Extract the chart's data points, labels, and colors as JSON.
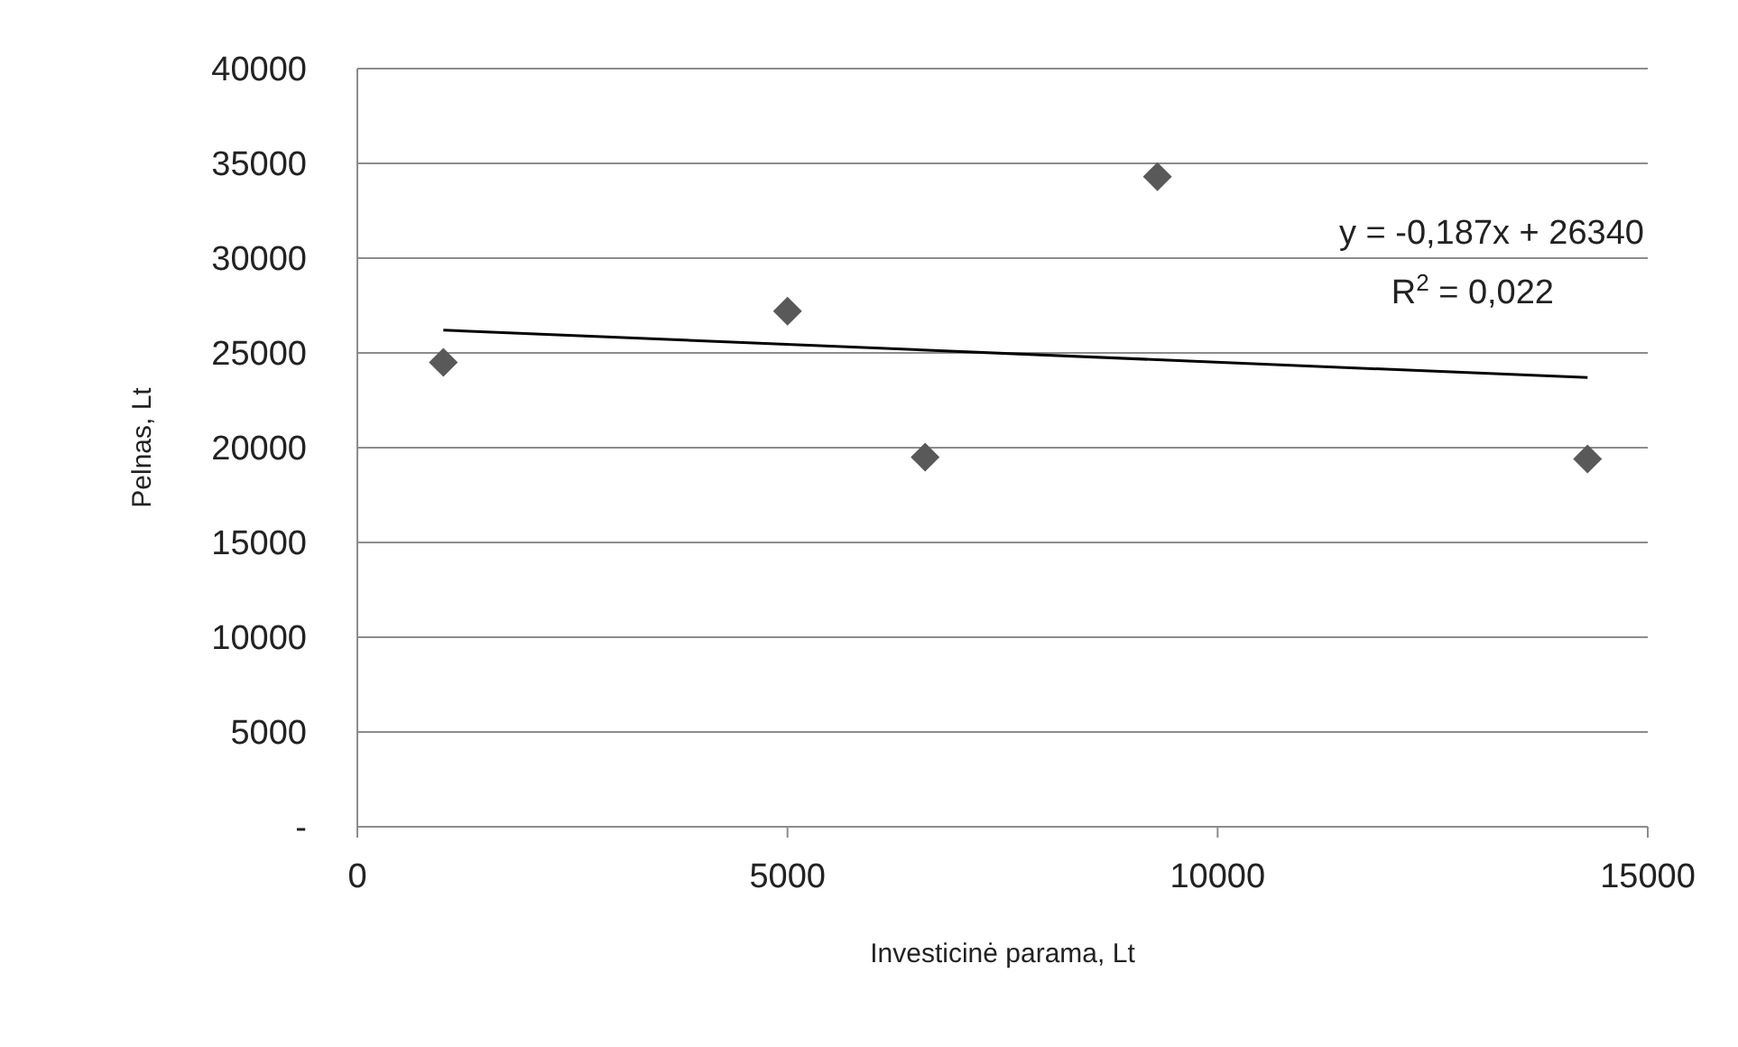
{
  "chart_data": {
    "type": "scatter",
    "xlabel": "Investicinė parama, Lt",
    "ylabel": "Pelnas, Lt",
    "x": [
      1000,
      5000,
      6600,
      9300,
      14300
    ],
    "series": [
      {
        "color": "#595959",
        "values": [
          24500,
          27200,
          19500,
          34300,
          19400
        ]
      },
      {
        "type": "line",
        "marker": "none",
        "color": "#000000",
        "x": [
          1000,
          14300
        ],
        "values": [
          26200,
          23700
        ]
      }
    ],
    "xlim": [
      0,
      15000
    ],
    "xticks": [
      0,
      5000,
      10000,
      15000
    ],
    "ylim": [
      0,
      40000
    ],
    "yticks": [
      {
        "value": 0,
        "label": "-"
      },
      5000,
      10000,
      15000,
      20000,
      25000,
      30000,
      35000,
      40000
    ],
    "grid": "y",
    "marker": "diamond",
    "annotations": [
      "y = -0,187x + 26340",
      "R$^{2}$ = 0,022"
    ]
  }
}
